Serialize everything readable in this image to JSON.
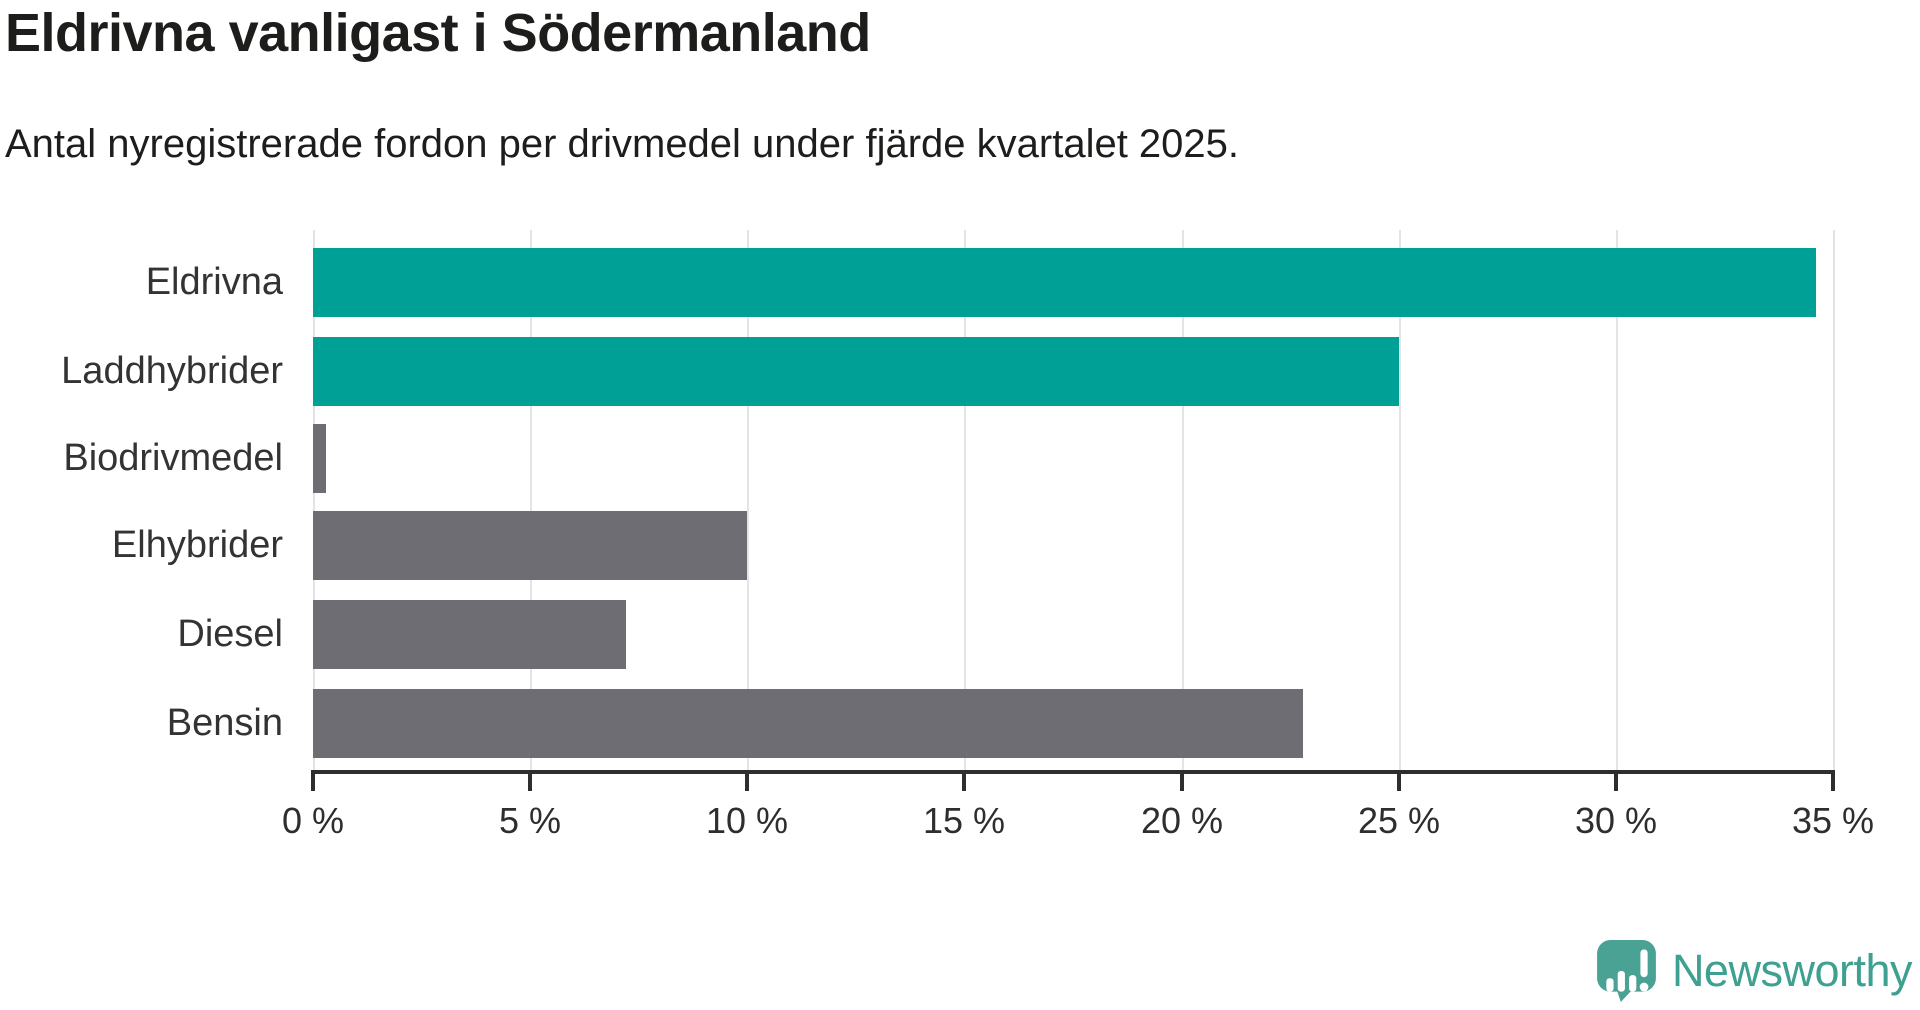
{
  "title": "Eldrivna vanligast i Södermanland",
  "subtitle": "Antal nyregistrerade fordon per drivmedel under fjärde kvartalet 2025.",
  "chart_data": {
    "type": "bar",
    "orientation": "horizontal",
    "title": "Eldrivna vanligast i Södermanland",
    "subtitle": "Antal nyregistrerade fordon per drivmedel under fjärde kvartalet 2025.",
    "categories": [
      "Eldrivna",
      "Laddhybrider",
      "Biodrivmedel",
      "Elhybrider",
      "Diesel",
      "Bensin"
    ],
    "values": [
      34.6,
      25.0,
      0.3,
      10.0,
      7.2,
      22.8
    ],
    "unit": "%",
    "bar_colors": [
      "#00a096",
      "#00a096",
      "#6d6d73",
      "#6d6d73",
      "#6d6d73",
      "#6d6d73"
    ],
    "highlight_color": "#00a096",
    "default_color": "#6d6d73",
    "xlim": [
      0,
      35
    ],
    "x_ticks": [
      0,
      5,
      10,
      15,
      20,
      25,
      30,
      35
    ],
    "x_tick_labels": [
      "0 %",
      "5 %",
      "10 %",
      "15 %",
      "20 %",
      "25 %",
      "30 %",
      "35 %"
    ],
    "grid": "vertical-light",
    "legend": "none"
  },
  "branding": {
    "logo_text": "Newsworthy",
    "logo_bubble_color": "#4aa294",
    "logo_text_color": "#3ea090"
  }
}
